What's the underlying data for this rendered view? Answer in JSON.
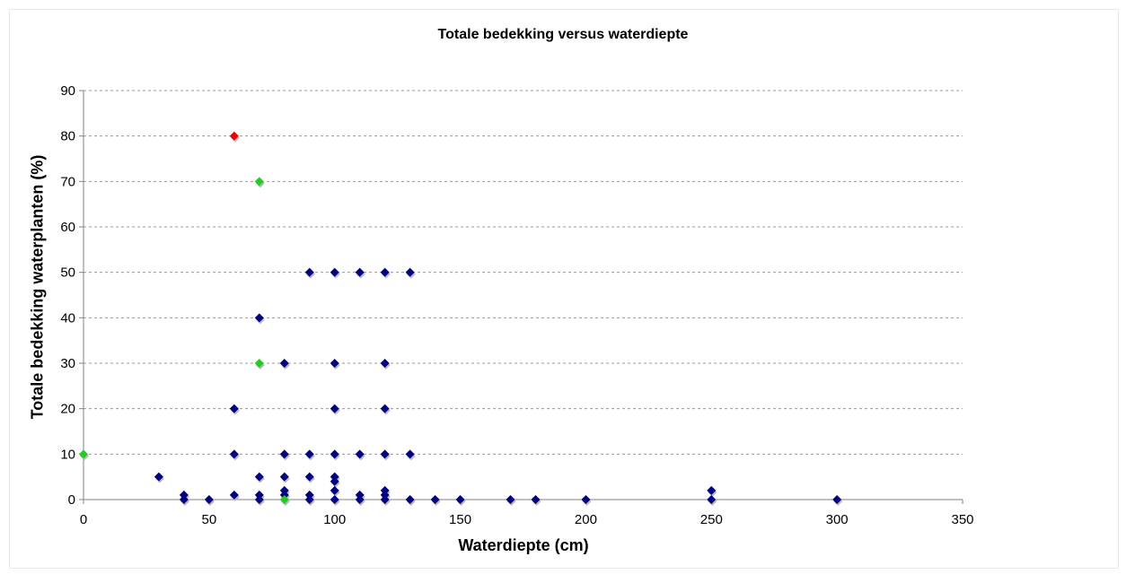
{
  "chart_data": {
    "type": "scatter",
    "title": "Totale bedekking versus waterdiepte",
    "xlabel": "Waterdiepte (cm)",
    "ylabel": "Totale bedekking waterplanten (%)",
    "xlim": [
      0,
      350
    ],
    "ylim": [
      0,
      90
    ],
    "x_ticks": [
      "0",
      "50",
      "100",
      "150",
      "200",
      "250",
      "300",
      "350"
    ],
    "y_ticks": [
      "0",
      "10",
      "20",
      "30",
      "40",
      "50",
      "60",
      "70",
      "80",
      "90"
    ],
    "grid": "horizontal dashed",
    "legend": "none",
    "series": [
      {
        "color": "#000080",
        "points": [
          [
            30,
            5
          ],
          [
            40,
            1
          ],
          [
            40,
            0
          ],
          [
            50,
            0
          ],
          [
            60,
            20
          ],
          [
            60,
            10
          ],
          [
            60,
            1
          ],
          [
            70,
            40
          ],
          [
            70,
            5
          ],
          [
            70,
            1
          ],
          [
            70,
            0
          ],
          [
            80,
            30
          ],
          [
            80,
            10
          ],
          [
            80,
            5
          ],
          [
            80,
            2
          ],
          [
            80,
            1
          ],
          [
            90,
            50
          ],
          [
            90,
            10
          ],
          [
            90,
            5
          ],
          [
            90,
            1
          ],
          [
            90,
            0
          ],
          [
            100,
            50
          ],
          [
            100,
            30
          ],
          [
            100,
            20
          ],
          [
            100,
            10
          ],
          [
            100,
            5
          ],
          [
            100,
            4
          ],
          [
            100,
            2
          ],
          [
            100,
            0
          ],
          [
            110,
            50
          ],
          [
            110,
            10
          ],
          [
            110,
            1
          ],
          [
            110,
            0
          ],
          [
            120,
            50
          ],
          [
            120,
            30
          ],
          [
            120,
            20
          ],
          [
            120,
            10
          ],
          [
            120,
            2
          ],
          [
            120,
            1
          ],
          [
            120,
            0
          ],
          [
            130,
            50
          ],
          [
            130,
            10
          ],
          [
            130,
            0
          ],
          [
            140,
            0
          ],
          [
            150,
            0
          ],
          [
            170,
            0
          ],
          [
            180,
            0
          ],
          [
            200,
            0
          ],
          [
            250,
            2
          ],
          [
            250,
            0
          ],
          [
            300,
            0
          ]
        ]
      },
      {
        "color": "#22cc22",
        "points": [
          [
            0,
            10
          ],
          [
            70,
            70
          ],
          [
            70,
            30
          ],
          [
            80,
            0
          ]
        ]
      },
      {
        "color": "#ee0000",
        "points": [
          [
            60,
            80
          ]
        ]
      }
    ]
  }
}
